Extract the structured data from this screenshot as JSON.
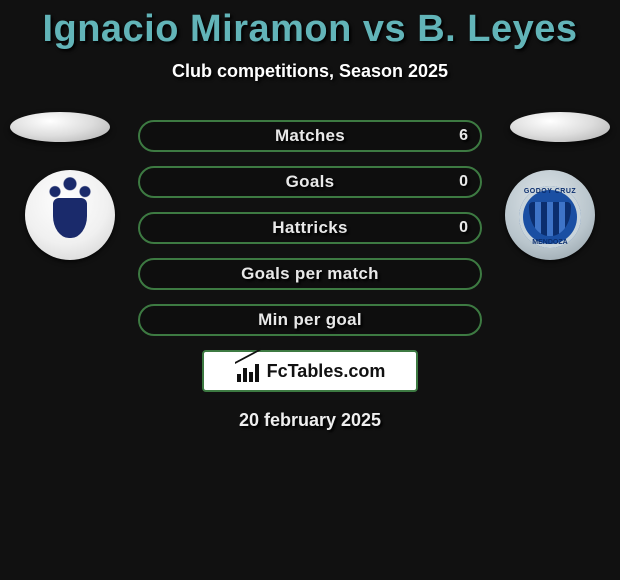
{
  "title": "Ignacio Miramon vs B. Leyes",
  "subtitle": "Club competitions, Season 2025",
  "date": "20 february 2025",
  "logo_text": "FcTables.com",
  "colors": {
    "title": "#62b4b8",
    "row_border": "#3d7a42",
    "background": "#111111"
  },
  "player_left": {
    "name": "Ignacio Miramon",
    "club_badge": "gimnasia"
  },
  "player_right": {
    "name": "B. Leyes",
    "club_badge": "godoy-cruz",
    "badge_top_text": "GODOY CRUZ",
    "badge_bottom_text": "MENDOZA"
  },
  "rows": [
    {
      "label": "Matches",
      "left": "",
      "right": "6"
    },
    {
      "label": "Goals",
      "left": "",
      "right": "0"
    },
    {
      "label": "Hattricks",
      "left": "",
      "right": "0"
    },
    {
      "label": "Goals per match",
      "left": "",
      "right": ""
    },
    {
      "label": "Min per goal",
      "left": "",
      "right": ""
    }
  ]
}
